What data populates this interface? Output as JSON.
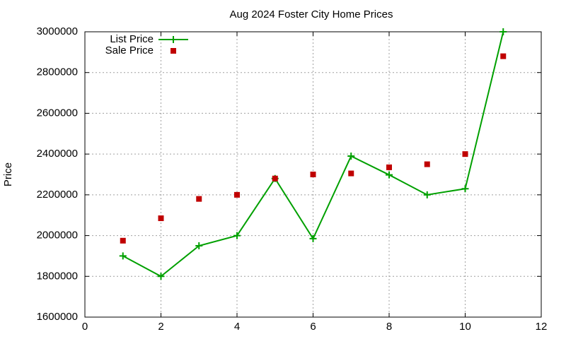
{
  "chart_data": {
    "type": "line",
    "title": "Aug 2024 Foster City Home Prices",
    "y_label": "Price",
    "x": [
      1,
      2,
      3,
      4,
      5,
      6,
      7,
      8,
      9,
      10,
      11
    ],
    "series": [
      {
        "name": "List Price",
        "color": "#00a000",
        "marker": "plus",
        "line": true,
        "values": [
          1900000,
          1800000,
          1950000,
          2000000,
          2280000,
          1985000,
          2390000,
          2298000,
          2200000,
          2230000,
          3000000
        ]
      },
      {
        "name": "Sale Price",
        "color": "#c00000",
        "marker": "square",
        "line": false,
        "values": [
          1975000,
          2085000,
          2180000,
          2200000,
          2280000,
          2300000,
          2305000,
          2335000,
          2350000,
          2400000,
          2880000
        ]
      }
    ],
    "xlim": [
      0,
      12
    ],
    "xticks": [
      0,
      2,
      4,
      6,
      8,
      10,
      12
    ],
    "ylim": [
      1600000,
      3000000
    ],
    "yticks": [
      1600000,
      1800000,
      2000000,
      2200000,
      2400000,
      2600000,
      2800000,
      3000000
    ],
    "grid": true,
    "legend": "top-left"
  }
}
